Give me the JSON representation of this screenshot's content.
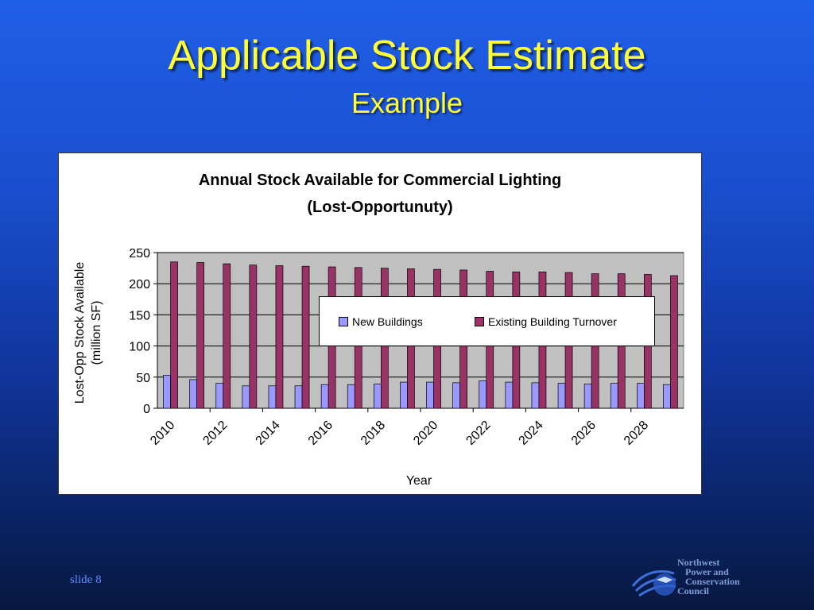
{
  "slide": {
    "title": "Applicable Stock Estimate",
    "subtitle": "Example",
    "slide_number": "slide 8",
    "logo_lines": [
      "Northwest",
      "Power and",
      "Conservation",
      "Council"
    ]
  },
  "colors": {
    "background_top": "#1f5fe6",
    "background_bottom": "#07183f",
    "title": "#ffff33",
    "plot_area": "#c0c0c0",
    "new_buildings": "#9999ff",
    "existing_turnover": "#993366"
  },
  "chart_data": {
    "type": "bar",
    "title_line1": "Annual Stock Available for Commercial Lighting",
    "title_line2": "(Lost-Opportunuty)",
    "xlabel": "Year",
    "ylabel_line1": "Lost-Opp Stock Available",
    "ylabel_line2": "(million SF)",
    "ylim": [
      0,
      250
    ],
    "yticks": [
      0,
      50,
      100,
      150,
      200,
      250
    ],
    "categories": [
      2010,
      2011,
      2012,
      2013,
      2014,
      2015,
      2016,
      2017,
      2018,
      2019,
      2020,
      2021,
      2022,
      2023,
      2024,
      2025,
      2026,
      2027,
      2028,
      2029
    ],
    "xtick_labels": [
      "2010",
      "2012",
      "2014",
      "2016",
      "2018",
      "2020",
      "2022",
      "2024",
      "2026",
      "2028"
    ],
    "legend_position": "inside-center-right",
    "series": [
      {
        "name": "New Buildings",
        "values": [
          53,
          46,
          40,
          36,
          36,
          36,
          38,
          38,
          39,
          42,
          42,
          41,
          44,
          42,
          41,
          40,
          39,
          40,
          40,
          38
        ]
      },
      {
        "name": "Existing Building Turnover",
        "values": [
          235,
          234,
          232,
          230,
          229,
          228,
          227,
          226,
          225,
          224,
          223,
          222,
          220,
          219,
          219,
          218,
          216,
          216,
          215,
          213
        ]
      }
    ]
  }
}
